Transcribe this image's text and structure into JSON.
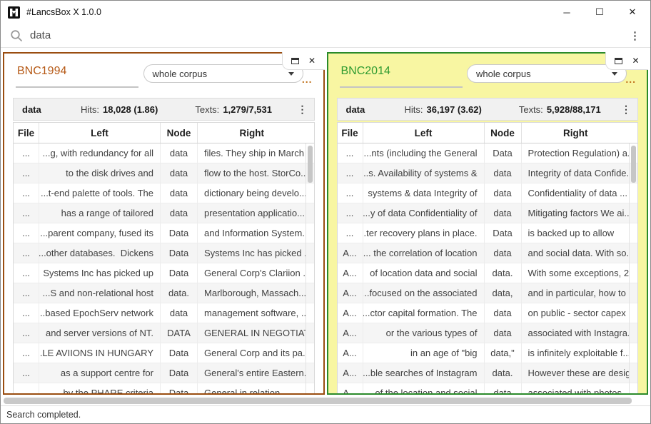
{
  "window": {
    "title": "#LancsBox X 1.0.0",
    "controls": {
      "minimize": "─",
      "maximize": "☐",
      "close": "✕"
    }
  },
  "icons": {
    "panel_close": "✕",
    "kebab": "⋮",
    "ellipsis": "..."
  },
  "search": {
    "value": "data"
  },
  "statusbar": {
    "text": "Search completed."
  },
  "panels": [
    {
      "title": "BNC1994",
      "accent_color": "#b65a17",
      "border_color": "#9a4d10",
      "background_color": "#ffffff",
      "corpus_dropdown": {
        "selected": "whole corpus"
      },
      "stats": {
        "node": "data",
        "hits_label": "Hits:",
        "hits_value": "18,028 (1.86)",
        "texts_label": "Texts:",
        "texts_value": "1,279/7,531"
      },
      "table": {
        "columns": [
          "File",
          "Left",
          "Node",
          "Right"
        ],
        "rows": [
          {
            "file": "...",
            "left": "...g, with redundancy for all",
            "node": "data",
            "right": "files. They ship in March"
          },
          {
            "file": "...",
            "left": "to the disk drives and",
            "node": "data",
            "right": "flow to the host. StorCo..."
          },
          {
            "file": "...",
            "left": "...t-end palette of tools. The",
            "node": "data",
            "right": "dictionary being develo..."
          },
          {
            "file": "...",
            "left": "has a range of tailored",
            "node": "data",
            "right": "presentation applicatio..."
          },
          {
            "file": "...",
            "left": "...parent company, fused its",
            "node": "Data",
            "right": "and Information System..."
          },
          {
            "file": "...",
            "left": "...other databases.  Dickens",
            "node": "Data",
            "right": "Systems Inc has picked ..."
          },
          {
            "file": "...",
            "left": "Systems Inc has picked up",
            "node": "Data",
            "right": "General Corp's Clariion ..."
          },
          {
            "file": "...",
            "left": "...S and non-relational host",
            "node": "data.",
            "right": "Marlborough, Massach..."
          },
          {
            "file": "...",
            "left": "...based EpochServ network",
            "node": "data",
            "right": "management software, ..."
          },
          {
            "file": "...",
            "left": "and server versions of NT.",
            "node": "DATA",
            "right": "GENERAL IN NEGOTIAT..."
          },
          {
            "file": "...",
            "left": "...LE AVIIONS IN HUNGARY",
            "node": "Data",
            "right": "General Corp and its pa..."
          },
          {
            "file": "...",
            "left": "as a support centre for",
            "node": "Data",
            "right": "General's entire Eastern..."
          },
          {
            "file": "...",
            "left": "...by the PHARE criteria",
            "node": "Data",
            "right": "General in relation..."
          }
        ]
      }
    },
    {
      "title": "BNC2014",
      "accent_color": "#2f9b31",
      "border_color": "#2a8a2a",
      "background_color": "#f8f6a2",
      "corpus_dropdown": {
        "selected": "whole corpus"
      },
      "stats": {
        "node": "data",
        "hits_label": "Hits:",
        "hits_value": "36,197 (3.62)",
        "texts_label": "Texts:",
        "texts_value": "5,928/88,171"
      },
      "table": {
        "columns": [
          "File",
          "Left",
          "Node",
          "Right"
        ],
        "rows": [
          {
            "file": "...",
            "left": "...nts (including the General",
            "node": "Data",
            "right": "Protection Regulation) a..."
          },
          {
            "file": "...",
            "left": "...s. Availability of systems &",
            "node": "data",
            "right": "Integrity of data Confide..."
          },
          {
            "file": "...",
            "left": "systems & data Integrity of",
            "node": "data",
            "right": "Confidentiality of data ..."
          },
          {
            "file": "...",
            "left": "...y of data Confidentiality of",
            "node": "data",
            "right": "Mitigating factors We ai..."
          },
          {
            "file": "...",
            "left": "...ter recovery plans in place.",
            "node": "Data",
            "right": "is backed up to allow"
          },
          {
            "file": "A...",
            "left": "... the correlation of location",
            "node": "data",
            "right": "and social data. With so..."
          },
          {
            "file": "A...",
            "left": "of location data and social",
            "node": "data.",
            "right": "With some exceptions, 2..."
          },
          {
            "file": "A...",
            "left": "...focused on the associated",
            "node": "data,",
            "right": "and in particular, how to"
          },
          {
            "file": "A...",
            "left": "...ctor capital formation. The",
            "node": "data",
            "right": "on public - sector capex ..."
          },
          {
            "file": "A...",
            "left": "or the various types of",
            "node": "data",
            "right": "associated with Instagra..."
          },
          {
            "file": "A...",
            "left": "in an age of \"big",
            "node": "data,\"",
            "right": "is infinitely exploitable f..."
          },
          {
            "file": "A...",
            "left": "...ble searches of Instagram",
            "node": "data.",
            "right": "However these are desig..."
          },
          {
            "file": "A...",
            "left": "... of the location and social",
            "node": "data",
            "right": "associated with photos..."
          }
        ]
      }
    }
  ]
}
